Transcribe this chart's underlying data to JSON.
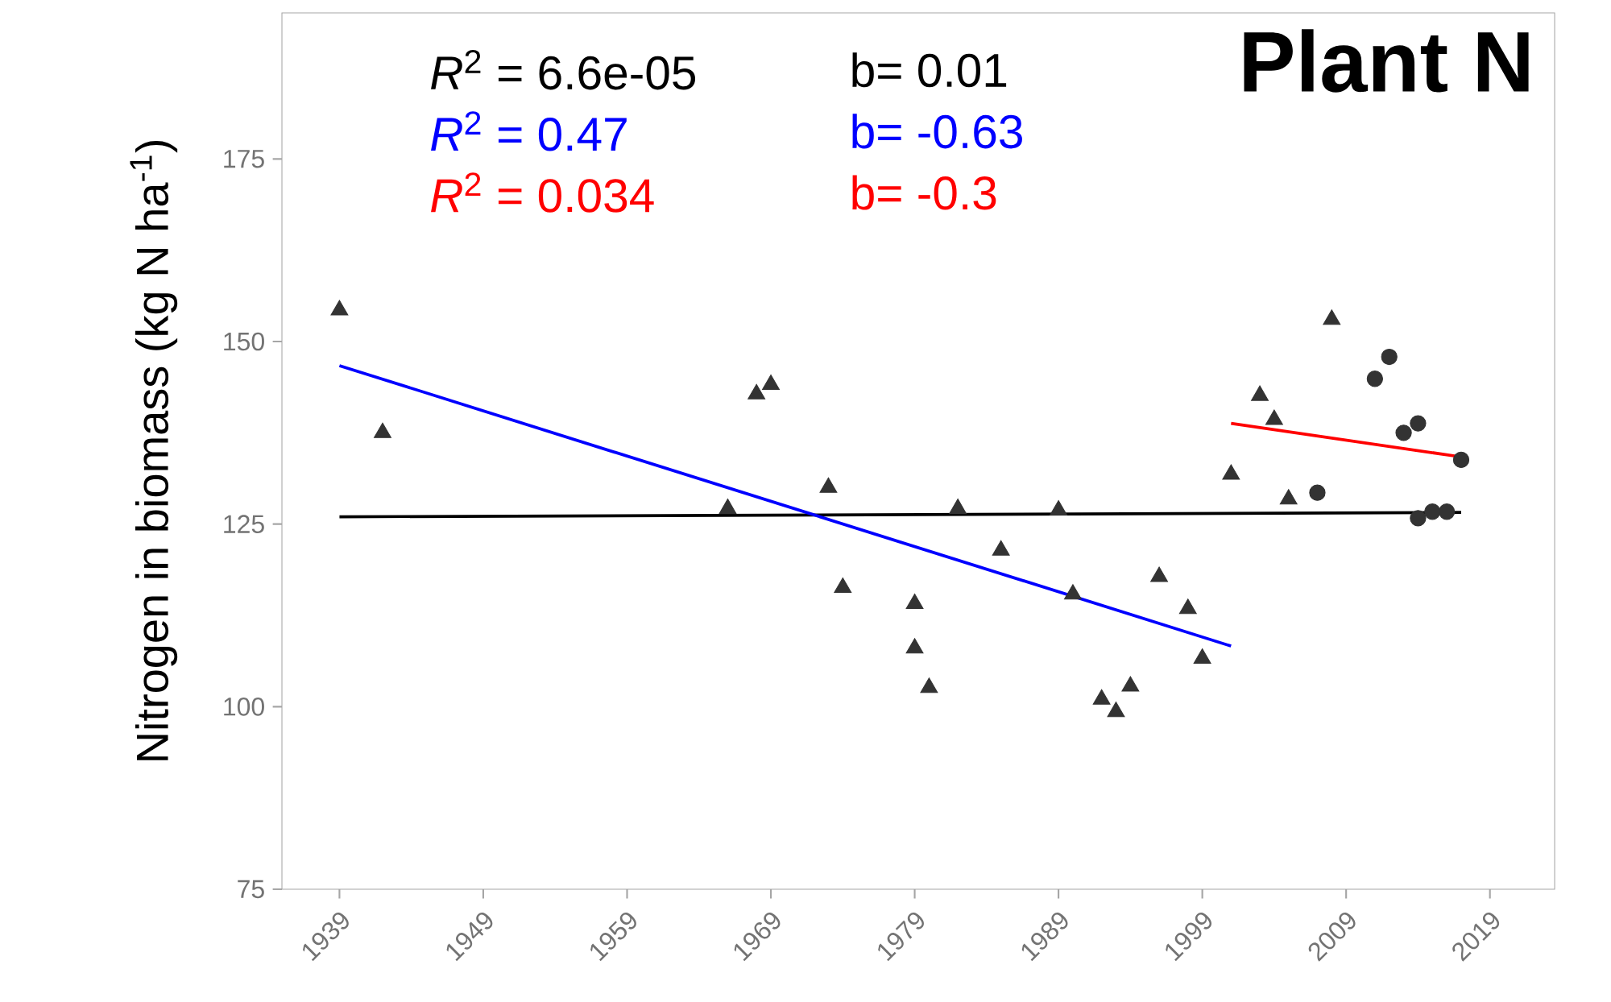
{
  "chart_data": {
    "type": "scatter",
    "title": "Plant N",
    "ylabel": "Nitrogen in biomass (kg N ha$^{-1}$)",
    "xlim": [
      1935,
      2023.5
    ],
    "ylim": [
      75,
      195
    ],
    "xticks": [
      1939,
      1949,
      1959,
      1969,
      1979,
      1989,
      1999,
      2009,
      2019
    ],
    "yticks": [
      75,
      100,
      125,
      150,
      175
    ],
    "grid": false,
    "series": [
      {
        "marker": "triangle",
        "color": "#333333",
        "x": [
          1939,
          1942,
          1966,
          1968,
          1969,
          1973,
          1974,
          1979,
          1979,
          1980,
          1982,
          1985,
          1989,
          1990,
          1992,
          1993,
          1994,
          1996,
          1998,
          1999,
          2001,
          2003,
          2004,
          2005,
          2008
        ],
        "values": [
          154.3,
          137.5,
          127.1,
          142.8,
          144.1,
          130,
          116.3,
          114.1,
          108,
          102.6,
          127.1,
          121.4,
          126.9,
          115.4,
          101,
          99.3,
          102.8,
          117.8,
          113.4,
          106.6,
          131.8,
          142.6,
          139.3,
          128.4,
          153
        ]
      },
      {
        "type": "scatter",
        "marker": "circle",
        "color": "#333333",
        "x": [
          2007,
          2011,
          2012,
          2013,
          2014,
          2014,
          2015,
          2016,
          2017
        ],
        "values": [
          129.3,
          144.9,
          147.9,
          137.5,
          138.8,
          125.8,
          126.7,
          126.7,
          133.8
        ]
      },
      {
        "type": "line",
        "color": "#000000",
        "x": [
          1939,
          2017
        ],
        "values": [
          126,
          126.6
        ]
      },
      {
        "type": "line",
        "color": "#0000ff",
        "x": [
          1939,
          2001
        ],
        "values": [
          146.7,
          108.3
        ]
      },
      {
        "type": "line",
        "color": "#ff0000",
        "x": [
          2001,
          2017
        ],
        "values": [
          138.8,
          134.2
        ]
      }
    ],
    "annotations": [
      "*R*$^{2}$ = 6.6e-05",
      "*R*$^{2}$ = 0.47",
      "*R*$^{2}$ = 0.034",
      "b= 0.01",
      "b= -0.63",
      "b= -0.3"
    ]
  }
}
